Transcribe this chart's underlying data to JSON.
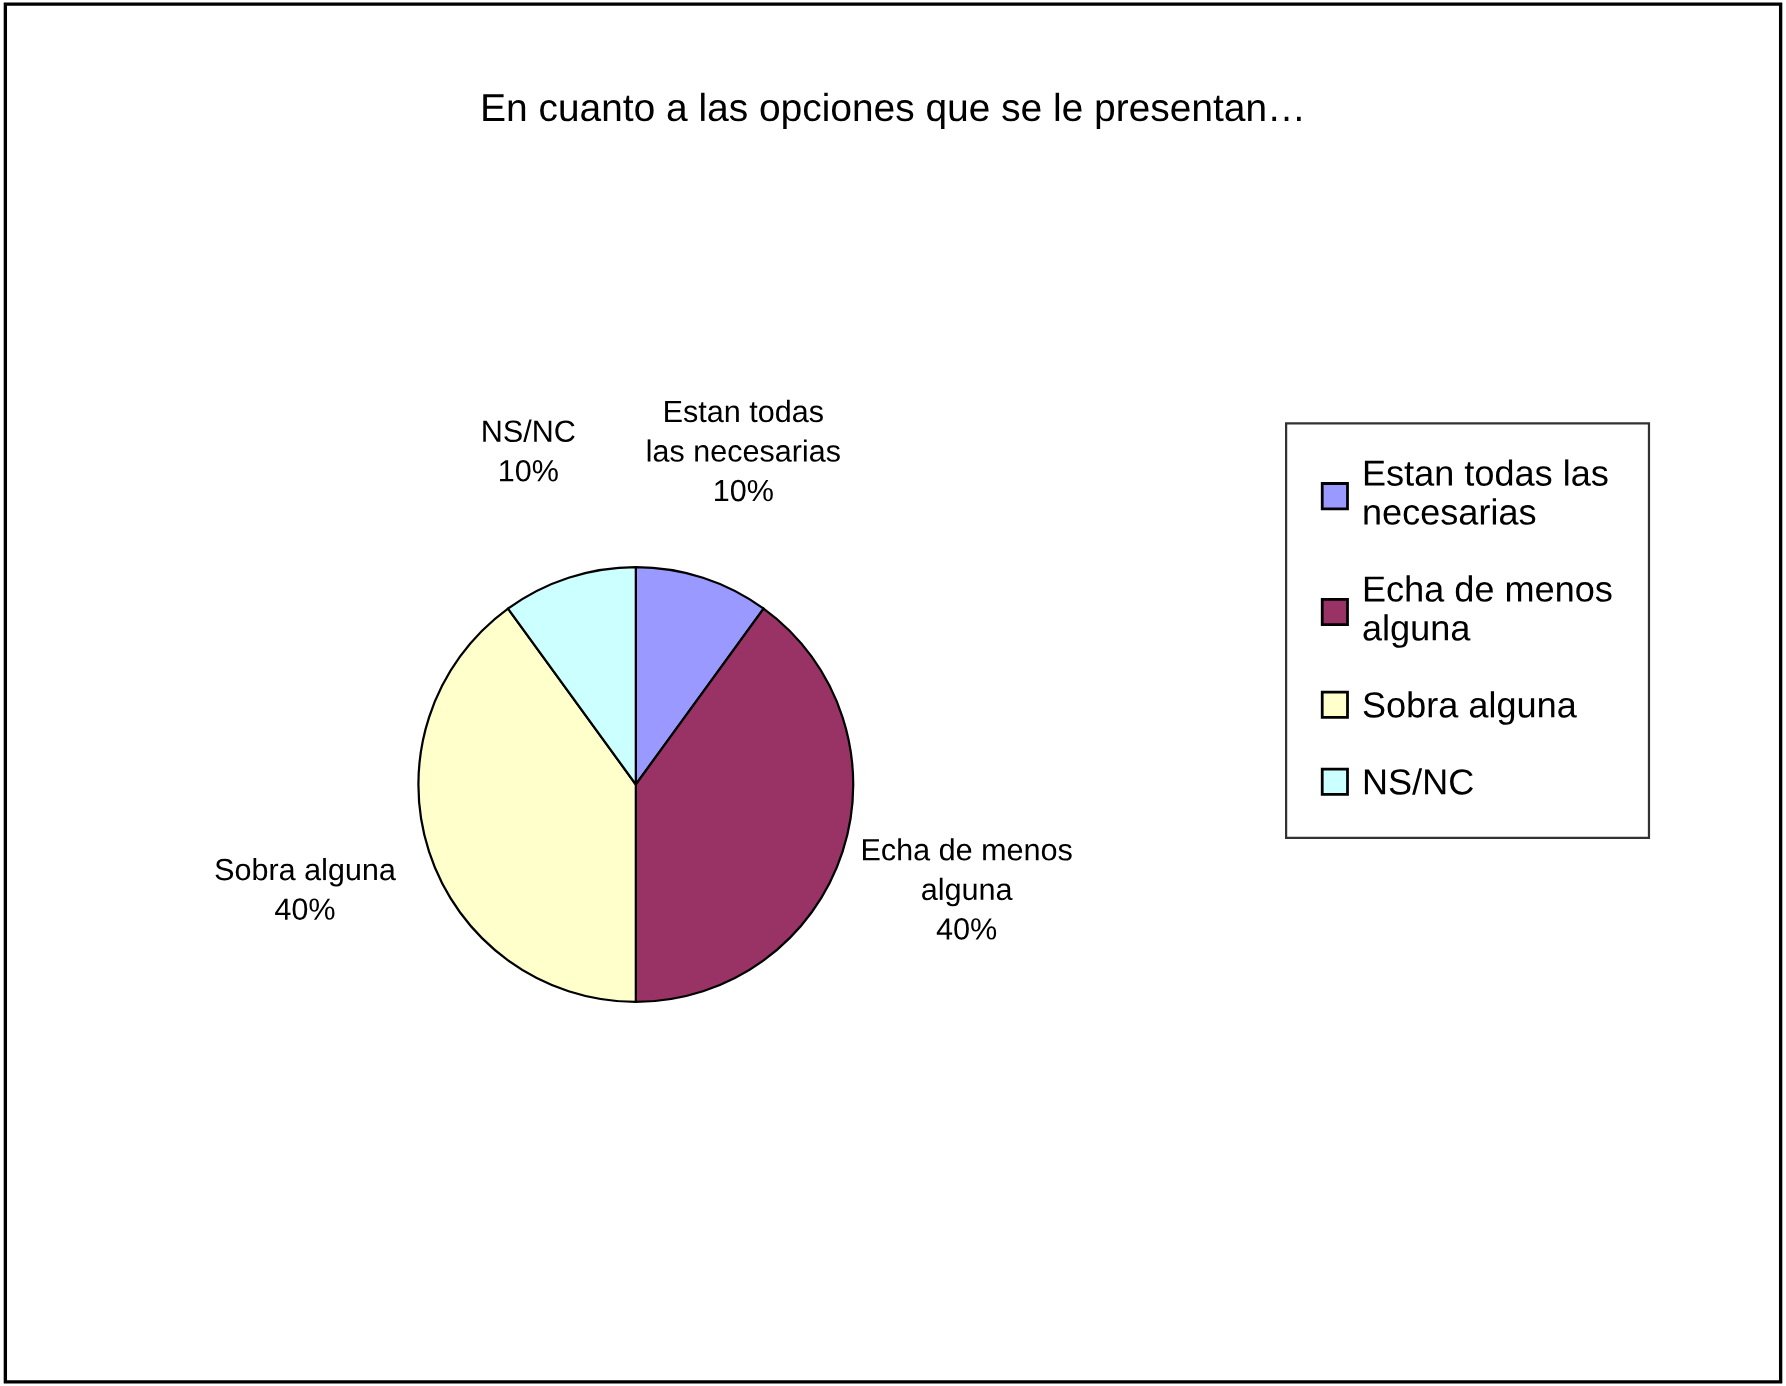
{
  "chart_data": {
    "type": "pie",
    "title": "En cuanto a las opciones que se le presentan…",
    "categories": [
      "Estan todas las necesarias",
      "Echa de menos alguna",
      "Sobra alguna",
      "NS/NC"
    ],
    "values": [
      10,
      40,
      40,
      10
    ],
    "value_labels": [
      "10%",
      "40%",
      "40%",
      "10%"
    ],
    "colors": [
      "#9999ff",
      "#993366",
      "#ffffcc",
      "#ccffff"
    ],
    "legend": "right"
  }
}
